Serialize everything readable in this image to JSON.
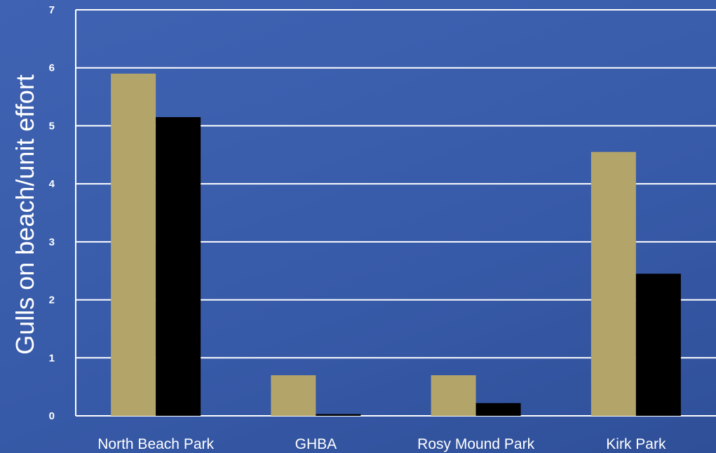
{
  "chart_data": {
    "type": "bar",
    "ylabel": "Gulls on beach/unit effort",
    "xlabel": "",
    "categories": [
      "North Beach Park",
      "GHBA",
      "Rosy Mound Park",
      "Kirk Park"
    ],
    "series": [
      {
        "color": "#b3a46a",
        "values": [
          5.9,
          0.7,
          0.7,
          4.55
        ]
      },
      {
        "color": "#000000",
        "values": [
          5.15,
          0.03,
          0.22,
          2.45
        ]
      }
    ],
    "ylim": [
      0,
      7
    ],
    "yticks": [
      "0",
      "1",
      "2",
      "3",
      "4",
      "5",
      "6",
      "7"
    ],
    "grid": true,
    "background_color": "#3a5ba8",
    "gridline_color": "#ffffff"
  }
}
